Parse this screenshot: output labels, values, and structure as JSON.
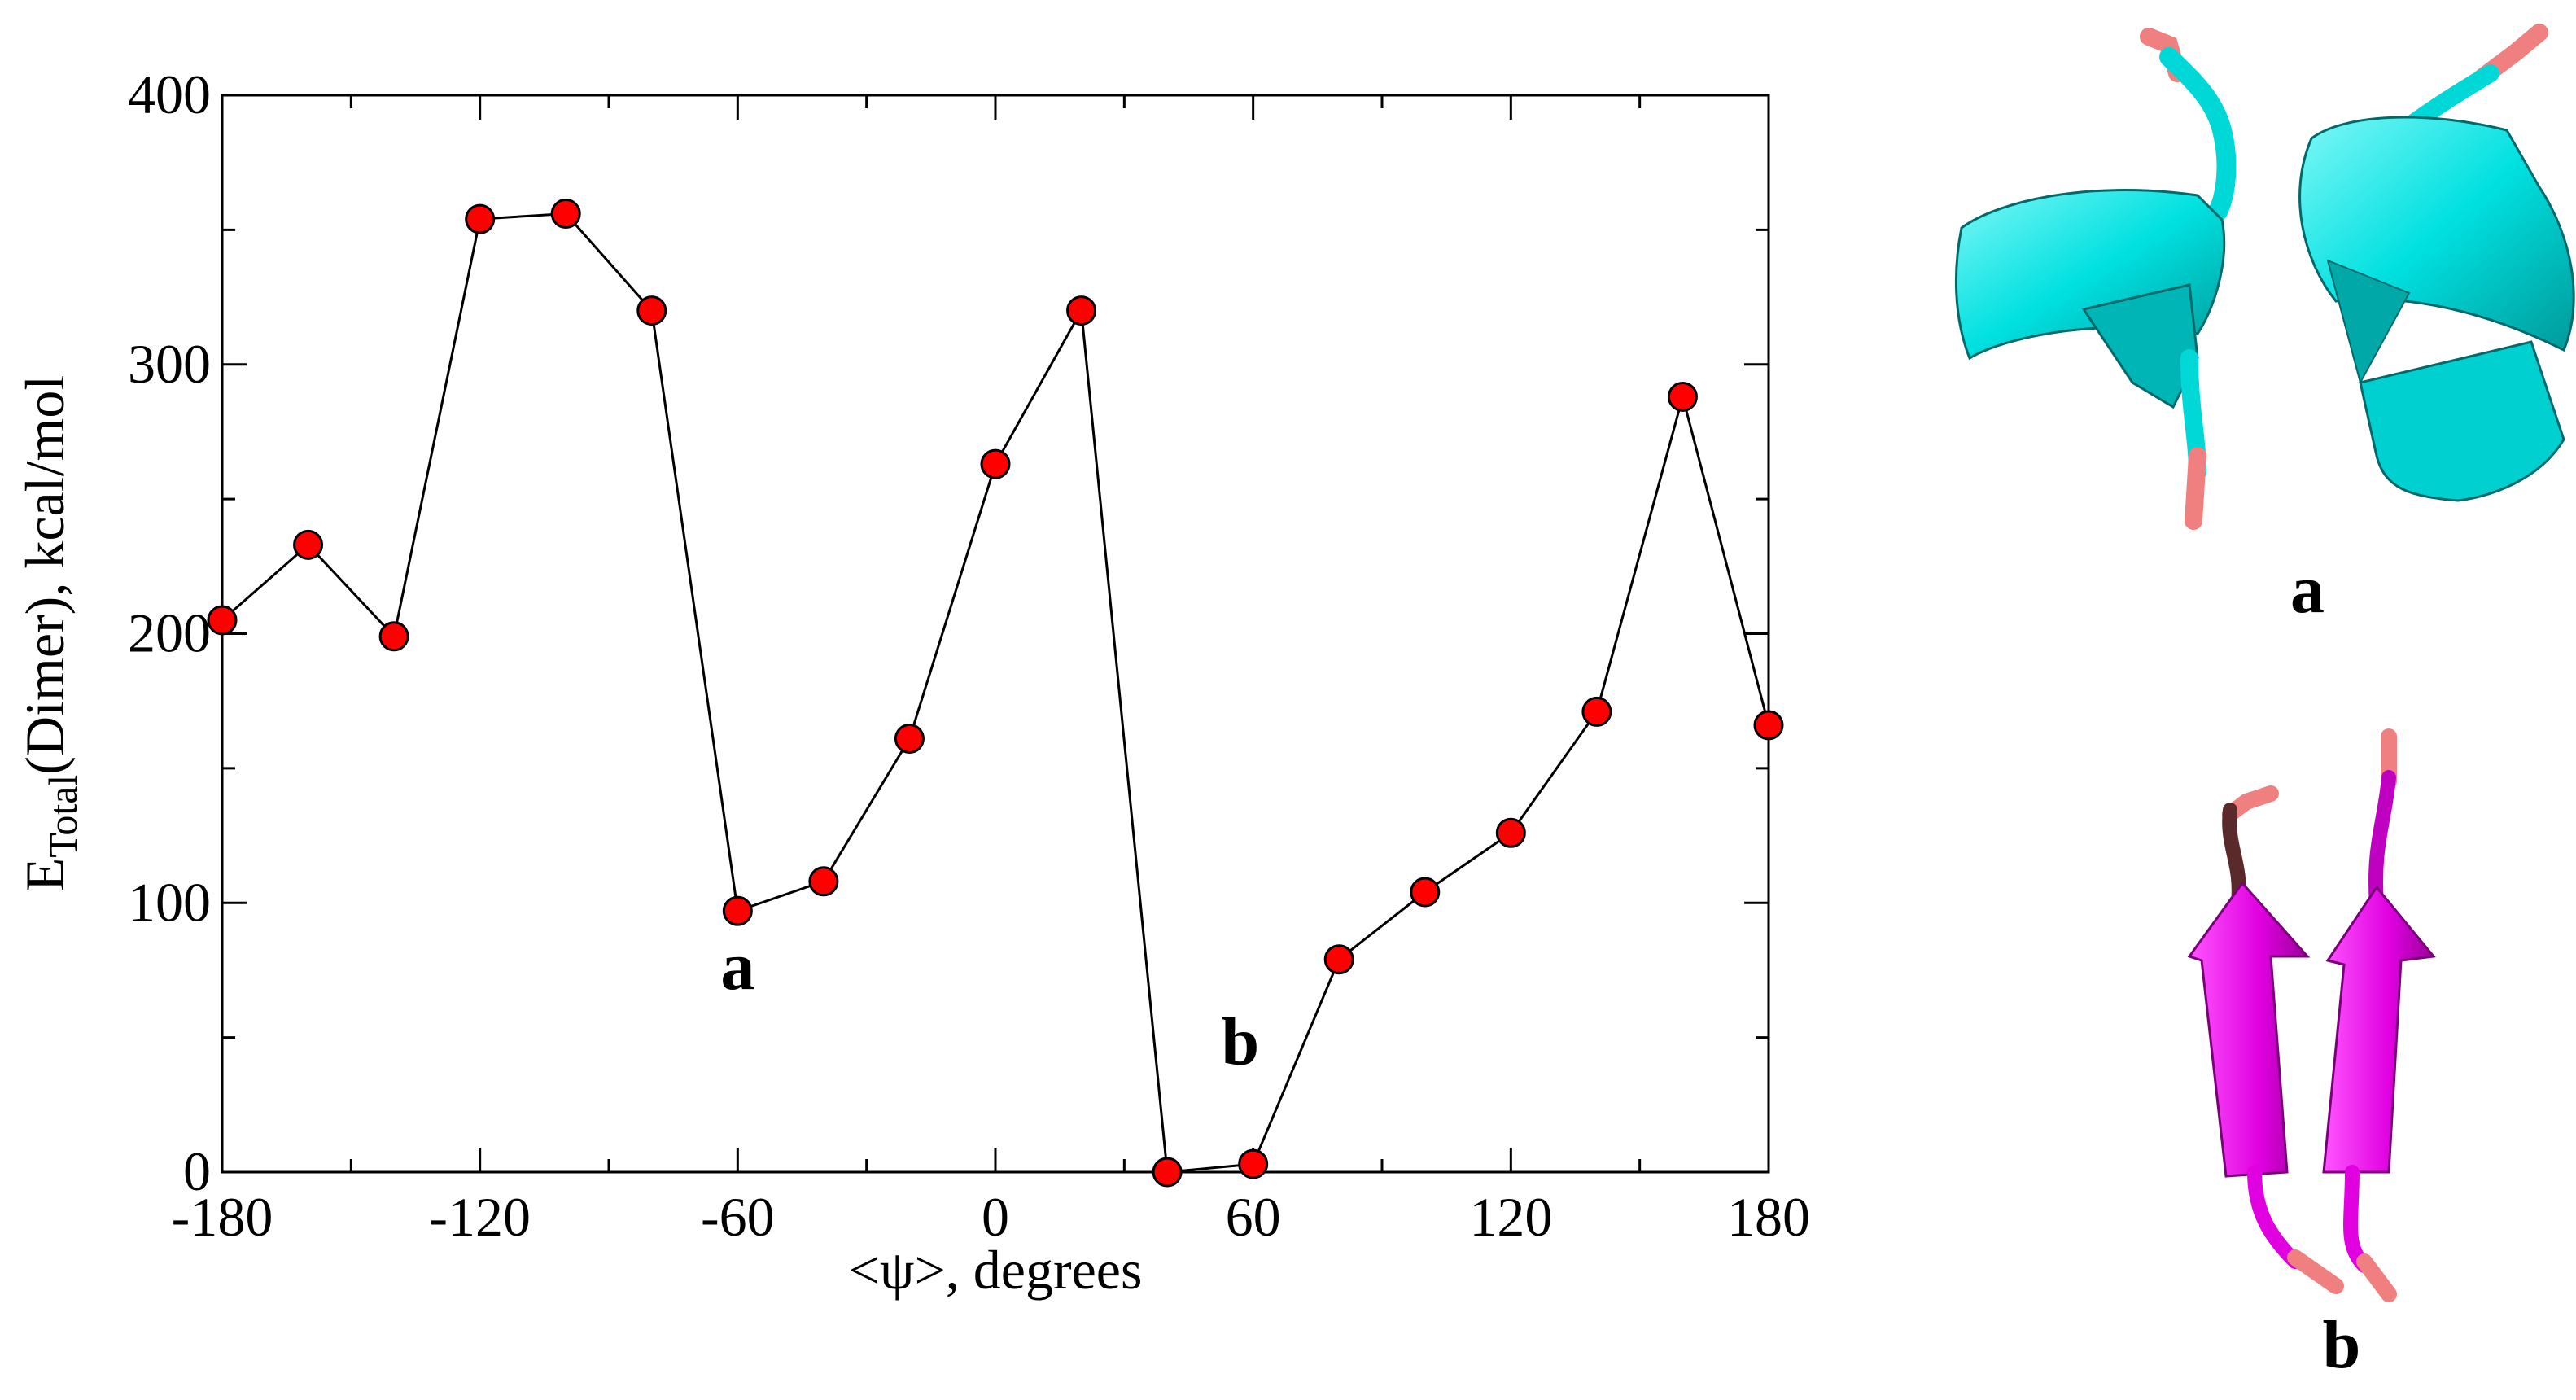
{
  "chart_data": {
    "type": "line",
    "title": "",
    "xlabel": "<ψ>, degrees",
    "ylabel_main": "E",
    "ylabel_sub": "Total",
    "ylabel_rest": "(Dimer), kcal/mol",
    "xlim": [
      -180,
      180
    ],
    "ylim": [
      0,
      400
    ],
    "xticks": [
      -180,
      -120,
      -60,
      0,
      60,
      120,
      180
    ],
    "yticks": [
      0,
      100,
      200,
      300,
      400
    ],
    "grid": false,
    "marker_color": "#ff0000",
    "line_color": "#000000",
    "x": [
      -180,
      -160,
      -140,
      -120,
      -100,
      -80,
      -60,
      -40,
      -20,
      0,
      20,
      40,
      60,
      80,
      100,
      120,
      140,
      160,
      180
    ],
    "y": [
      205,
      233,
      199,
      354,
      356,
      320,
      97,
      108,
      161,
      263,
      320,
      0,
      3,
      79,
      104,
      126,
      171,
      288,
      166
    ],
    "annotations": [
      {
        "text": "a",
        "x": -60,
        "y": 68
      },
      {
        "text": "b",
        "x": 57,
        "y": 40
      }
    ]
  },
  "structures": [
    {
      "label": "a",
      "kind": "helix",
      "color": "#00e6e6",
      "end_color": "#f08080"
    },
    {
      "label": "b",
      "kind": "strand",
      "color": "#e600e6",
      "end_color": "#f08080"
    }
  ]
}
